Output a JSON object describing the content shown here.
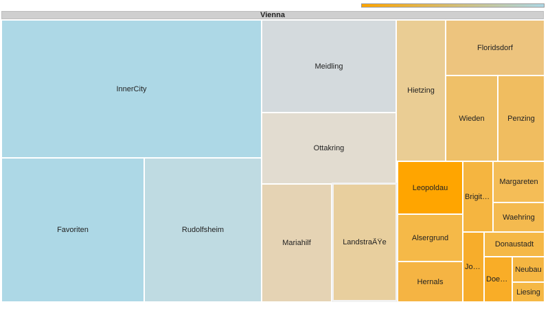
{
  "chart_data": {
    "type": "treemap",
    "root": "Vienna",
    "color_scale": [
      "#ffa500",
      "#add8e6"
    ],
    "legend_placement": "top-right",
    "nodes": [
      {
        "name": "InnerCity",
        "display": "InnerCity",
        "color": "#add8e6"
      },
      {
        "name": "Favoriten",
        "display": "Favoriten",
        "color": "#add8e6"
      },
      {
        "name": "Rudolfsheim",
        "display": "Rudolfsheim",
        "color": "#bfdbe2"
      },
      {
        "name": "Meidling",
        "display": "Meidling",
        "color": "#d4dadd"
      },
      {
        "name": "Ottakring",
        "display": "Ottakring",
        "color": "#e2dcd0"
      },
      {
        "name": "Mariahilf",
        "display": "Mariahilf",
        "color": "#e5d3b4"
      },
      {
        "name": "LandstraÃŸe",
        "display": "LandstraÃŸe",
        "color": "#e8cf9e",
        "highlight": true
      },
      {
        "name": "Hietzing",
        "display": "Hietzing",
        "color": "#eacd94"
      },
      {
        "name": "Floridsdorf",
        "display": "Floridsdorf",
        "color": "#edc47e"
      },
      {
        "name": "Wieden",
        "display": "Wieden",
        "color": "#efc068"
      },
      {
        "name": "Penzing",
        "display": "Penzing",
        "color": "#f0bd60"
      },
      {
        "name": "Leopoldau",
        "display": "Leopoldau",
        "color": "#ffa500"
      },
      {
        "name": "Alsergrund",
        "display": "Alsergrund",
        "color": "#f5b948"
      },
      {
        "name": "Hernals",
        "display": "Hernals",
        "color": "#f5b443"
      },
      {
        "name": "Brigittenau",
        "display": "Brigitte...",
        "color": "#f5b540"
      },
      {
        "name": "Margareten",
        "display": "Margareten",
        "color": "#f4bd57"
      },
      {
        "name": "Waehring",
        "display": "Waehring",
        "color": "#f4ba4f"
      },
      {
        "name": "Josefstadt",
        "display": "Jos...",
        "color": "#f7ad2b"
      },
      {
        "name": "Donaustadt",
        "display": "Donaustadt",
        "color": "#f5b846"
      },
      {
        "name": "Doebling",
        "display": "Doebl...",
        "color": "#f9ad27"
      },
      {
        "name": "Neubau",
        "display": "Neubau",
        "color": "#f5b642"
      },
      {
        "name": "Liesing",
        "display": "Liesing",
        "color": "#f5b845"
      }
    ]
  }
}
